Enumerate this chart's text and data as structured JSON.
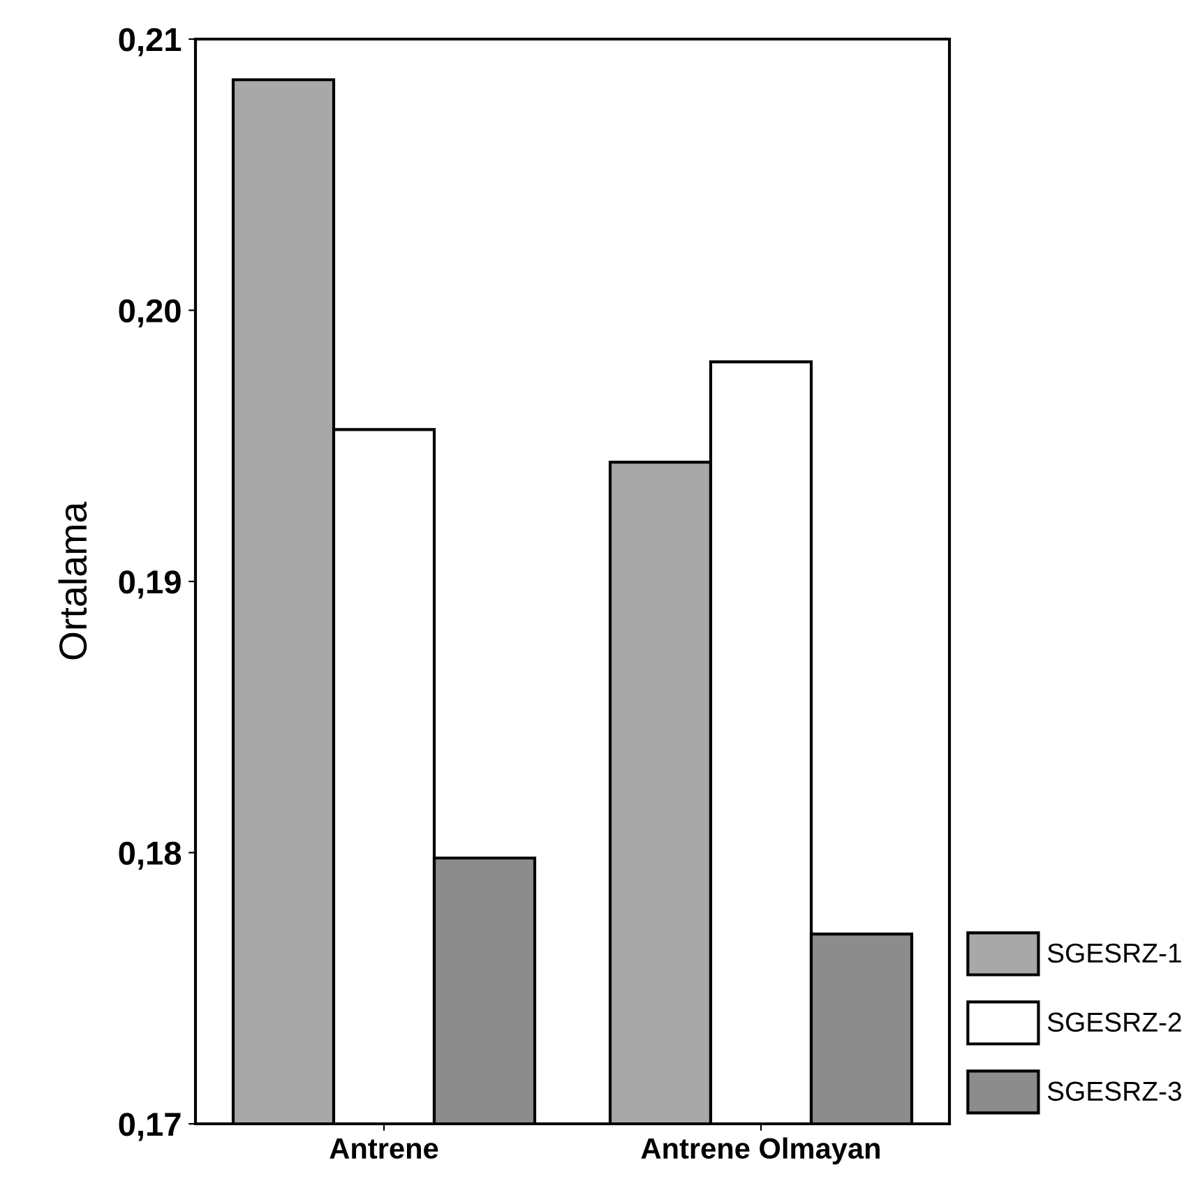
{
  "chart_data": {
    "type": "bar",
    "ylabel": "Ortalama",
    "categories": [
      "Antrene",
      "Antrene Olmayan"
    ],
    "series": [
      {
        "name": "SGESRZ-1",
        "color": "#a8a8a8",
        "values": [
          0.2085,
          0.1944
        ]
      },
      {
        "name": "SGESRZ-2",
        "color": "#ffffff",
        "values": [
          0.1956,
          0.1981
        ]
      },
      {
        "name": "SGESRZ-3",
        "color": "#8c8c8c",
        "values": [
          0.1798,
          0.177
        ]
      }
    ],
    "ylim": [
      0.17,
      0.21
    ],
    "yticks": [
      {
        "value": 0.17,
        "label": "0,17"
      },
      {
        "value": 0.18,
        "label": "0,18"
      },
      {
        "value": 0.19,
        "label": "0,19"
      },
      {
        "value": 0.2,
        "label": "0,20"
      },
      {
        "value": 0.21,
        "label": "0,21"
      }
    ],
    "grid": false,
    "legend": "bottom right"
  }
}
